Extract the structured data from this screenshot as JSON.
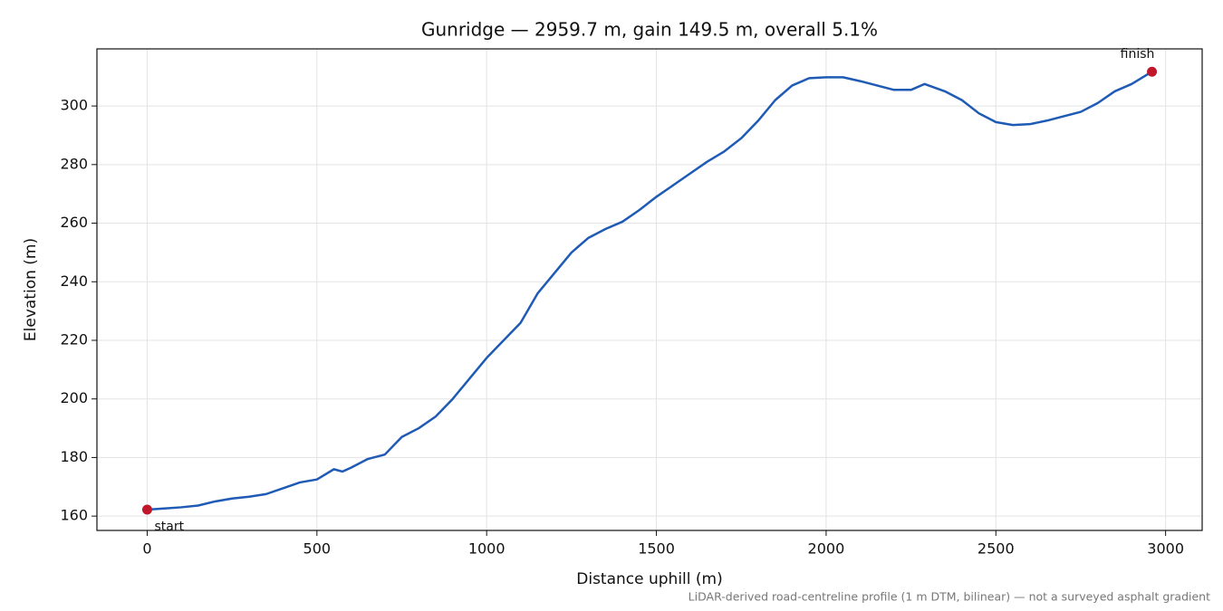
{
  "chart_data": {
    "type": "line",
    "title": "Gunridge — 2959.7 m, gain 149.5 m, overall 5.1%",
    "xlabel": "Distance uphill (m)",
    "ylabel": "Elevation (m)",
    "note": "LiDAR-derived road-centreline profile (1 m DTM, bilinear) — not a surveyed asphalt gradient",
    "x": [
      0,
      50,
      100,
      150,
      200,
      250,
      300,
      350,
      400,
      450,
      500,
      550,
      575,
      600,
      650,
      700,
      750,
      800,
      850,
      900,
      950,
      1000,
      1050,
      1100,
      1150,
      1200,
      1250,
      1300,
      1350,
      1400,
      1450,
      1500,
      1550,
      1600,
      1650,
      1700,
      1750,
      1800,
      1850,
      1900,
      1950,
      2000,
      2050,
      2100,
      2150,
      2200,
      2250,
      2290,
      2350,
      2400,
      2450,
      2500,
      2550,
      2600,
      2650,
      2700,
      2750,
      2800,
      2850,
      2900,
      2959.7
    ],
    "values": [
      162.2,
      162.6,
      163.0,
      163.6,
      165.0,
      166.0,
      166.6,
      167.5,
      169.5,
      171.5,
      172.5,
      176,
      175.2,
      176.5,
      179.5,
      181,
      187,
      190,
      194,
      200,
      207,
      214,
      220,
      226,
      236,
      243,
      250,
      255,
      258,
      260.5,
      264.5,
      269,
      273,
      277,
      281,
      284.5,
      289,
      295,
      302,
      307,
      309.5,
      309.8,
      309.8,
      308.5,
      307,
      305.5,
      305.5,
      307.5,
      305,
      302,
      297.5,
      294.5,
      293.5,
      293.8,
      295,
      296.5,
      298,
      301,
      305,
      307.5,
      311.7
    ],
    "color": "#1f5bb5",
    "points": [
      {
        "label": "start",
        "x": 0,
        "y": 162.2
      },
      {
        "label": "finish",
        "x": 2959.7,
        "y": 311.7
      }
    ],
    "point_color": "#c0182a",
    "xlim": [
      -148,
      3107.7
    ],
    "ylim": [
      155.1,
      319.5
    ],
    "xticks": [
      0,
      500,
      1000,
      1500,
      2000,
      2500,
      3000
    ],
    "yticks": [
      160,
      180,
      200,
      220,
      240,
      260,
      280,
      300
    ],
    "grid": true
  }
}
